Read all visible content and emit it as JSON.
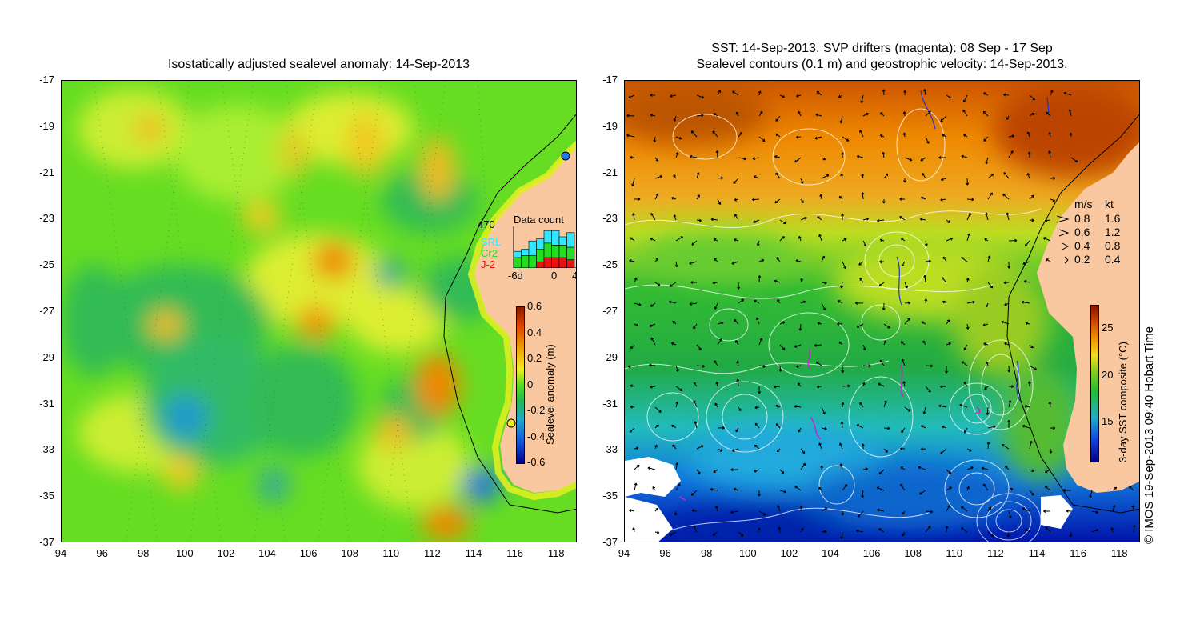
{
  "left_panel": {
    "title": "Isostatically adjusted sealevel anomaly: 14-Sep-2013",
    "y_ticks": [
      "-17",
      "-19",
      "-21",
      "-23",
      "-25",
      "-27",
      "-29",
      "-31",
      "-33",
      "-35",
      "-37"
    ],
    "x_ticks": [
      "94",
      "96",
      "98",
      "100",
      "102",
      "104",
      "106",
      "108",
      "110",
      "112",
      "114",
      "116",
      "118"
    ],
    "colorbar": {
      "label": "Sealevel anomaly (m)",
      "ticks": [
        "0.6",
        "0.4",
        "0.2",
        "0",
        "-0.2",
        "-0.4",
        "-0.6"
      ],
      "range": [
        -0.6,
        0.6
      ]
    },
    "data_count": {
      "title": "Data count",
      "max_label": "470",
      "x_ticks": [
        "-6d",
        "0",
        "4"
      ],
      "legend": [
        {
          "name": "SRL",
          "color": "#33e6ff"
        },
        {
          "name": "Cr2",
          "color": "#22dd22"
        },
        {
          "name": "J-2",
          "color": "#ee1111"
        }
      ],
      "stacks": [
        {
          "srl": 0.15,
          "cr2": 0.25,
          "j2": 0.0
        },
        {
          "srl": 0.15,
          "cr2": 0.3,
          "j2": 0.0
        },
        {
          "srl": 0.35,
          "cr2": 0.3,
          "j2": 0.0
        },
        {
          "srl": 0.25,
          "cr2": 0.3,
          "j2": 0.15
        },
        {
          "srl": 0.3,
          "cr2": 0.35,
          "j2": 0.25
        },
        {
          "srl": 0.35,
          "cr2": 0.3,
          "j2": 0.25
        },
        {
          "srl": 0.2,
          "cr2": 0.3,
          "j2": 0.25
        },
        {
          "srl": 0.35,
          "cr2": 0.3,
          "j2": 0.2
        }
      ]
    }
  },
  "right_panel": {
    "title_line1": "SST: 14-Sep-2013. SVP drifters (magenta): 08 Sep - 17 Sep",
    "title_line2": "Sealevel contours (0.1 m) and geostrophic velocity: 14-Sep-2013.",
    "y_ticks": [
      "-17",
      "-19",
      "-21",
      "-23",
      "-25",
      "-27",
      "-29",
      "-31",
      "-33",
      "-35",
      "-37"
    ],
    "x_ticks": [
      "94",
      "96",
      "98",
      "100",
      "102",
      "104",
      "106",
      "108",
      "110",
      "112",
      "114",
      "116",
      "118"
    ],
    "colorbar": {
      "label": "3-day SST composite (°C)",
      "ticks": [
        "25",
        "20",
        "15"
      ]
    },
    "velocity_legend": {
      "header_ms": "m/s",
      "header_kt": "kt",
      "rows": [
        {
          "ms": "0.8",
          "kt": "1.6"
        },
        {
          "ms": "0.6",
          "kt": "1.2"
        },
        {
          "ms": "0.4",
          "kt": "0.8"
        },
        {
          "ms": "0.2",
          "kt": "0.4"
        }
      ]
    }
  },
  "credit": "© IMOS 19-Sep-2013 09:40 Hobart Time",
  "colors": {
    "land": "#f9c8a0",
    "sla_low": "#000080",
    "sla_mid": "#22cc22",
    "sla_high": "#8b1a00",
    "cloud": "#ffffff"
  }
}
